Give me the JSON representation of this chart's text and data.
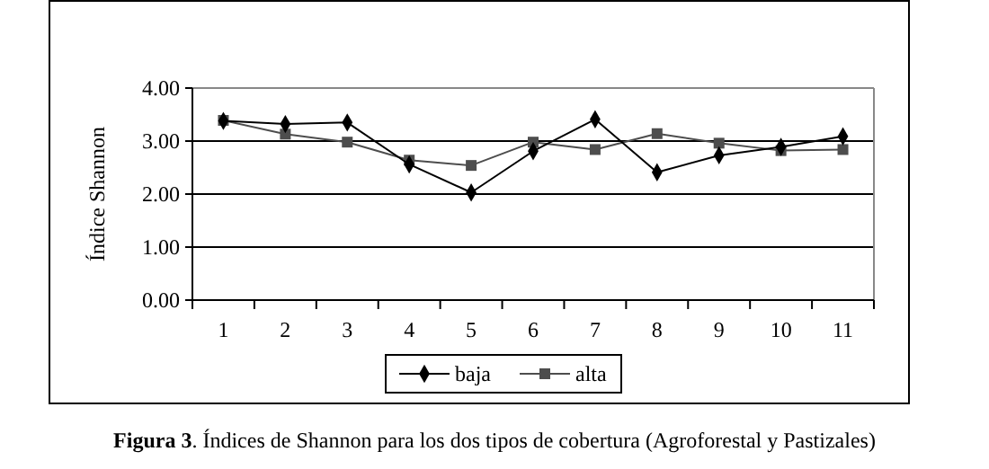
{
  "chart_data": {
    "type": "line",
    "title": "Figura 3. Índices de Shannon para los dos tipos de cobertura (Agroforestal y Pastizales)",
    "ylabel": "Índice Shannon",
    "categories": [
      "1",
      "2",
      "3",
      "4",
      "5",
      "6",
      "7",
      "8",
      "9",
      "10",
      "11"
    ],
    "series": [
      {
        "name": "baja",
        "color": "#000000",
        "marker": "diamond",
        "values": [
          3.38,
          3.32,
          3.35,
          2.56,
          2.03,
          2.81,
          3.41,
          2.41,
          2.73,
          2.89,
          3.09
        ]
      },
      {
        "name": "alta",
        "color": "#4d4d4d",
        "marker": "square",
        "values": [
          3.39,
          3.13,
          2.98,
          2.64,
          2.54,
          2.98,
          2.84,
          3.14,
          2.96,
          2.82,
          2.84
        ]
      }
    ],
    "ylim": [
      0,
      4
    ],
    "yticks": [
      {
        "value": 0,
        "label": "0.00"
      },
      {
        "value": 1,
        "label": "1.00"
      },
      {
        "value": 2,
        "label": "2.00"
      },
      {
        "value": 3,
        "label": "3.00"
      },
      {
        "value": 4,
        "label": "4.00"
      }
    ],
    "grid": "y",
    "legend": "bottom",
    "line_style": "solid"
  }
}
